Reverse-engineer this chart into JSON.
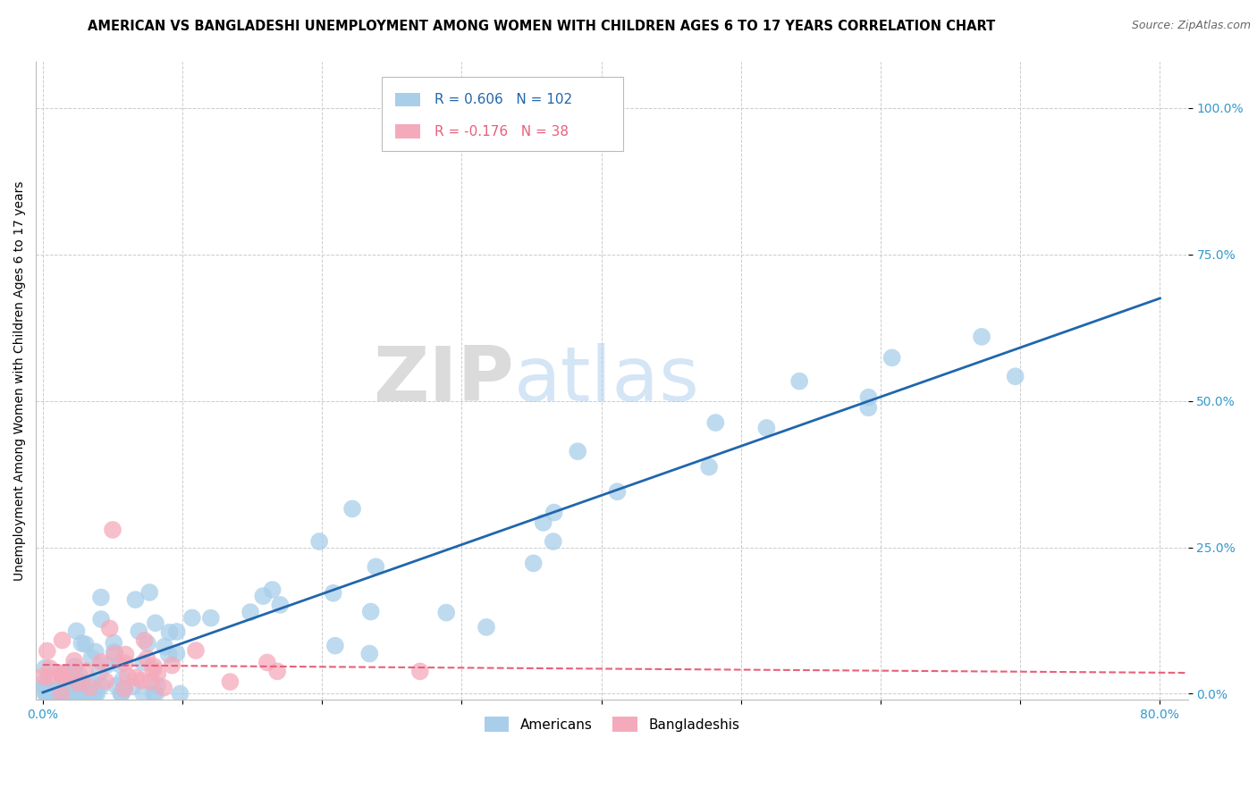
{
  "title": "AMERICAN VS BANGLADESHI UNEMPLOYMENT AMONG WOMEN WITH CHILDREN AGES 6 TO 17 YEARS CORRELATION CHART",
  "source": "Source: ZipAtlas.com",
  "ylabel": "Unemployment Among Women with Children Ages 6 to 17 years",
  "xlim": [
    -0.005,
    0.82
  ],
  "ylim": [
    -0.01,
    1.08
  ],
  "xtick_positions": [
    0.0,
    0.1,
    0.2,
    0.3,
    0.4,
    0.5,
    0.6,
    0.7,
    0.8
  ],
  "xticklabels": [
    "0.0%",
    "",
    "",
    "",
    "",
    "",
    "",
    "",
    "80.0%"
  ],
  "ytick_positions": [
    0.0,
    0.25,
    0.5,
    0.75,
    1.0
  ],
  "yticklabels": [
    "0.0%",
    "25.0%",
    "50.0%",
    "75.0%",
    "100.0%"
  ],
  "r_american": 0.606,
  "n_american": 102,
  "r_bangladeshi": -0.176,
  "n_bangladeshi": 38,
  "american_color": "#A8CEEA",
  "bangladeshi_color": "#F5AABB",
  "american_line_color": "#2166AC",
  "bangladeshi_line_color": "#E8607A",
  "background_color": "#FFFFFF",
  "grid_color": "#CCCCCC",
  "watermark_zip": "ZIP",
  "watermark_atlas": "atlas",
  "title_fontsize": 10.5,
  "axis_label_fontsize": 10,
  "tick_fontsize": 10,
  "legend_fontsize": 11
}
